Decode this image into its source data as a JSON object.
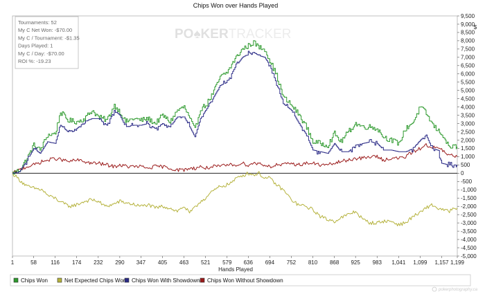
{
  "chart_data": {
    "type": "line",
    "title": "Chips Won over Hands Played",
    "xlabel": "Hands Played",
    "ylabel": "",
    "y_unit_label": "$",
    "xlim": [
      1,
      1199
    ],
    "ylim": [
      -5000,
      9500
    ],
    "x_ticks": [
      1,
      58,
      116,
      174,
      232,
      290,
      347,
      405,
      463,
      521,
      579,
      636,
      694,
      752,
      810,
      868,
      925,
      983,
      1041,
      1099,
      1157,
      1199
    ],
    "x_tick_labels": [
      "1",
      "58",
      "116",
      "174",
      "232",
      "290",
      "347",
      "405",
      "463",
      "521",
      "579",
      "636",
      "694",
      "752",
      "810",
      "868",
      "925",
      "983",
      "1,041",
      "1,099",
      "1,157",
      "1,199"
    ],
    "y_ticks": [
      9500,
      9000,
      8500,
      8000,
      7500,
      7000,
      6500,
      6000,
      5500,
      5000,
      4500,
      4000,
      3500,
      3000,
      2500,
      2000,
      1500,
      1000,
      500,
      0,
      -500,
      -1000,
      -1500,
      -2000,
      -2500,
      -3000,
      -3500,
      -4000,
      -4500,
      -5000
    ],
    "y_tick_labels": [
      "9,500",
      "9,000",
      "8,500",
      "8,000",
      "7,500",
      "7,000",
      "6,500",
      "6,000",
      "5,500",
      "5,000",
      "4,500",
      "4,000",
      "3,500",
      "3,000",
      "2,500",
      "2,000",
      "1,500",
      "1,000",
      "500",
      "0",
      "-500",
      "-1,000",
      "-1,500",
      "-2,000",
      "-2,500",
      "-3,000",
      "-3,500",
      "-4,000",
      "-4,500",
      "-5,000"
    ],
    "grid": false,
    "legend_position": "bottom",
    "series": [
      {
        "name": "Chips Won",
        "color": "#2e9a2e",
        "style": "stepped-noisy",
        "points": [
          [
            1,
            0
          ],
          [
            20,
            200
          ],
          [
            40,
            900
          ],
          [
            58,
            1700
          ],
          [
            75,
            1400
          ],
          [
            95,
            2300
          ],
          [
            116,
            2400
          ],
          [
            130,
            3700
          ],
          [
            150,
            3200
          ],
          [
            174,
            3100
          ],
          [
            195,
            3300
          ],
          [
            215,
            3800
          ],
          [
            232,
            3400
          ],
          [
            255,
            3200
          ],
          [
            275,
            4100
          ],
          [
            290,
            3700
          ],
          [
            305,
            3100
          ],
          [
            325,
            3300
          ],
          [
            347,
            3200
          ],
          [
            365,
            3300
          ],
          [
            385,
            3000
          ],
          [
            405,
            3500
          ],
          [
            425,
            3100
          ],
          [
            445,
            3800
          ],
          [
            463,
            4000
          ],
          [
            478,
            3300
          ],
          [
            492,
            2600
          ],
          [
            507,
            3900
          ],
          [
            521,
            4100
          ],
          [
            540,
            4800
          ],
          [
            560,
            5800
          ],
          [
            579,
            6100
          ],
          [
            600,
            6900
          ],
          [
            620,
            7500
          ],
          [
            636,
            7700
          ],
          [
            650,
            7900
          ],
          [
            665,
            7600
          ],
          [
            680,
            7500
          ],
          [
            694,
            6800
          ],
          [
            712,
            5900
          ],
          [
            730,
            4600
          ],
          [
            752,
            4100
          ],
          [
            770,
            3600
          ],
          [
            790,
            2900
          ],
          [
            810,
            1900
          ],
          [
            830,
            1800
          ],
          [
            850,
            1700
          ],
          [
            868,
            2400
          ],
          [
            885,
            1900
          ],
          [
            905,
            2500
          ],
          [
            925,
            3000
          ],
          [
            945,
            2800
          ],
          [
            965,
            2800
          ],
          [
            983,
            2700
          ],
          [
            1000,
            2200
          ],
          [
            1020,
            2000
          ],
          [
            1041,
            1800
          ],
          [
            1060,
            2700
          ],
          [
            1080,
            3100
          ],
          [
            1099,
            4000
          ],
          [
            1115,
            3600
          ],
          [
            1130,
            3000
          ],
          [
            1145,
            2600
          ],
          [
            1157,
            2400
          ],
          [
            1175,
            1600
          ],
          [
            1199,
            1600
          ]
        ]
      },
      {
        "name": "Net Expected Chips Won",
        "color": "#b5b23c",
        "style": "noisy",
        "points": [
          [
            1,
            0
          ],
          [
            20,
            -400
          ],
          [
            40,
            -800
          ],
          [
            58,
            -900
          ],
          [
            80,
            -1000
          ],
          [
            100,
            -1400
          ],
          [
            116,
            -1500
          ],
          [
            135,
            -1800
          ],
          [
            155,
            -2000
          ],
          [
            174,
            -1900
          ],
          [
            195,
            -1700
          ],
          [
            215,
            -1600
          ],
          [
            232,
            -1700
          ],
          [
            250,
            -2000
          ],
          [
            270,
            -1900
          ],
          [
            290,
            -1700
          ],
          [
            310,
            -1800
          ],
          [
            330,
            -1900
          ],
          [
            347,
            -2000
          ],
          [
            365,
            -1900
          ],
          [
            385,
            -2100
          ],
          [
            405,
            -2000
          ],
          [
            425,
            -2100
          ],
          [
            445,
            -2300
          ],
          [
            463,
            -2000
          ],
          [
            478,
            -2400
          ],
          [
            492,
            -2100
          ],
          [
            507,
            -1700
          ],
          [
            521,
            -1500
          ],
          [
            540,
            -1100
          ],
          [
            560,
            -800
          ],
          [
            579,
            -700
          ],
          [
            595,
            -500
          ],
          [
            610,
            -200
          ],
          [
            625,
            -100
          ],
          [
            636,
            0
          ],
          [
            650,
            -100
          ],
          [
            665,
            0
          ],
          [
            680,
            -300
          ],
          [
            694,
            -300
          ],
          [
            712,
            -700
          ],
          [
            730,
            -1000
          ],
          [
            752,
            -1600
          ],
          [
            770,
            -1900
          ],
          [
            790,
            -2000
          ],
          [
            810,
            -2200
          ],
          [
            830,
            -2600
          ],
          [
            850,
            -2800
          ],
          [
            868,
            -2900
          ],
          [
            885,
            -2700
          ],
          [
            905,
            -2500
          ],
          [
            925,
            -2300
          ],
          [
            945,
            -2800
          ],
          [
            965,
            -3000
          ],
          [
            983,
            -3000
          ],
          [
            1000,
            -2900
          ],
          [
            1020,
            -2900
          ],
          [
            1041,
            -3100
          ],
          [
            1060,
            -3000
          ],
          [
            1080,
            -2600
          ],
          [
            1099,
            -2400
          ],
          [
            1115,
            -2100
          ],
          [
            1130,
            -1900
          ],
          [
            1145,
            -2100
          ],
          [
            1157,
            -2200
          ],
          [
            1175,
            -2300
          ],
          [
            1199,
            -2100
          ]
        ]
      },
      {
        "name": "Chips Won With Showdown",
        "color": "#2a2a86",
        "style": "stepped",
        "points": [
          [
            1,
            0
          ],
          [
            20,
            100
          ],
          [
            40,
            800
          ],
          [
            58,
            1500
          ],
          [
            75,
            1200
          ],
          [
            95,
            1900
          ],
          [
            116,
            1800
          ],
          [
            130,
            2900
          ],
          [
            150,
            2500
          ],
          [
            174,
            2700
          ],
          [
            195,
            3100
          ],
          [
            215,
            3300
          ],
          [
            232,
            3300
          ],
          [
            255,
            2900
          ],
          [
            275,
            3800
          ],
          [
            290,
            3500
          ],
          [
            305,
            2800
          ],
          [
            325,
            2900
          ],
          [
            347,
            2900
          ],
          [
            365,
            3000
          ],
          [
            385,
            2700
          ],
          [
            405,
            3000
          ],
          [
            425,
            2800
          ],
          [
            445,
            3400
          ],
          [
            463,
            3400
          ],
          [
            478,
            2800
          ],
          [
            492,
            2200
          ],
          [
            507,
            3300
          ],
          [
            521,
            3800
          ],
          [
            540,
            4500
          ],
          [
            560,
            5300
          ],
          [
            579,
            5500
          ],
          [
            600,
            6400
          ],
          [
            620,
            7000
          ],
          [
            636,
            7200
          ],
          [
            650,
            7300
          ],
          [
            665,
            7100
          ],
          [
            680,
            7000
          ],
          [
            694,
            6500
          ],
          [
            712,
            5400
          ],
          [
            730,
            4200
          ],
          [
            752,
            3800
          ],
          [
            770,
            3100
          ],
          [
            790,
            2400
          ],
          [
            810,
            1400
          ],
          [
            830,
            1300
          ],
          [
            850,
            1200
          ],
          [
            868,
            1800
          ],
          [
            885,
            1300
          ],
          [
            905,
            1300
          ],
          [
            925,
            1700
          ],
          [
            945,
            1800
          ],
          [
            965,
            1900
          ],
          [
            983,
            1800
          ],
          [
            1000,
            1400
          ],
          [
            1020,
            1400
          ],
          [
            1041,
            1300
          ],
          [
            1060,
            1300
          ],
          [
            1080,
            1500
          ],
          [
            1099,
            2000
          ],
          [
            1115,
            2300
          ],
          [
            1130,
            1500
          ],
          [
            1145,
            1400
          ],
          [
            1157,
            600
          ],
          [
            1175,
            500
          ],
          [
            1199,
            500
          ]
        ]
      },
      {
        "name": "Chips Won Without Showdown",
        "color": "#9a1a1a",
        "style": "noisy",
        "points": [
          [
            1,
            0
          ],
          [
            20,
            200
          ],
          [
            40,
            400
          ],
          [
            58,
            500
          ],
          [
            80,
            700
          ],
          [
            100,
            800
          ],
          [
            116,
            900
          ],
          [
            135,
            800
          ],
          [
            155,
            700
          ],
          [
            174,
            800
          ],
          [
            195,
            700
          ],
          [
            215,
            600
          ],
          [
            232,
            600
          ],
          [
            255,
            500
          ],
          [
            275,
            400
          ],
          [
            290,
            500
          ],
          [
            310,
            400
          ],
          [
            330,
            400
          ],
          [
            347,
            400
          ],
          [
            365,
            300
          ],
          [
            385,
            400
          ],
          [
            405,
            400
          ],
          [
            425,
            300
          ],
          [
            445,
            200
          ],
          [
            463,
            200
          ],
          [
            478,
            300
          ],
          [
            492,
            300
          ],
          [
            507,
            400
          ],
          [
            521,
            300
          ],
          [
            540,
            400
          ],
          [
            560,
            400
          ],
          [
            579,
            500
          ],
          [
            600,
            500
          ],
          [
            620,
            600
          ],
          [
            636,
            500
          ],
          [
            650,
            600
          ],
          [
            665,
            600
          ],
          [
            680,
            500
          ],
          [
            694,
            400
          ],
          [
            712,
            500
          ],
          [
            730,
            500
          ],
          [
            752,
            600
          ],
          [
            770,
            500
          ],
          [
            790,
            600
          ],
          [
            810,
            600
          ],
          [
            830,
            500
          ],
          [
            850,
            500
          ],
          [
            868,
            600
          ],
          [
            885,
            700
          ],
          [
            905,
            800
          ],
          [
            925,
            900
          ],
          [
            945,
            900
          ],
          [
            965,
            1000
          ],
          [
            983,
            1000
          ],
          [
            1000,
            800
          ],
          [
            1020,
            900
          ],
          [
            1041,
            900
          ],
          [
            1060,
            1000
          ],
          [
            1080,
            1300
          ],
          [
            1099,
            1500
          ],
          [
            1115,
            1700
          ],
          [
            1130,
            1600
          ],
          [
            1145,
            1500
          ],
          [
            1157,
            1400
          ],
          [
            1175,
            1100
          ],
          [
            1199,
            1000
          ]
        ]
      }
    ]
  },
  "stats": [
    "Tournaments: 52",
    "My C Net Won: -$70.00",
    "My C / Tournament: -$1.35",
    "Days Played: 1",
    "My C / Day: -$70.00",
    "ROI %: -19.23"
  ],
  "watermark": {
    "prefix": "PO",
    "suit": "♠",
    "middle": "KER",
    "suffix": "TRACKER"
  },
  "legend": [
    {
      "label": "Chips Won",
      "color": "#2e9a2e"
    },
    {
      "label": "Net Expected Chips Won",
      "color": "#b5b23c"
    },
    {
      "label": "Chips Won With Showdown",
      "color": "#2a2a86"
    },
    {
      "label": "Chips Won Without Showdown",
      "color": "#9a1a1a"
    }
  ],
  "footer_logo": "pokerphotography.ca"
}
